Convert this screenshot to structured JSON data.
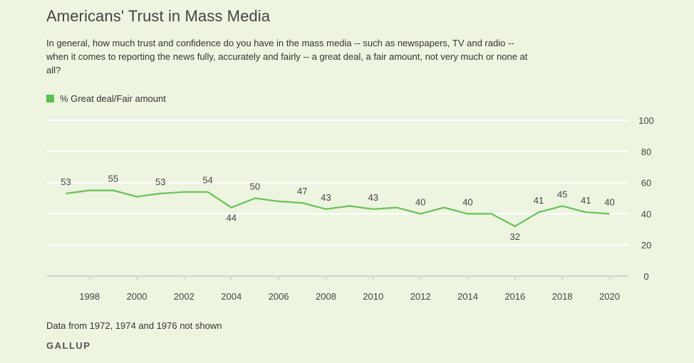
{
  "title": "Americans' Trust in Mass Media",
  "subtitle": "In general, how much trust and confidence do you have in the mass media -- such as newspapers, TV and radio -- when it comes to reporting the news fully, accurately and fairly -- a great deal, a fair amount, not very much or none at all?",
  "footnote": "Data from 1972, 1974 and 1976 not shown",
  "brand": "GALLUP",
  "colors": {
    "line": "#67c254",
    "background": "#edf4e0",
    "grid": "#ffffff",
    "swatch": "#5dc14f"
  },
  "chart_data": {
    "type": "line",
    "title": "Americans' Trust in Mass Media",
    "xlabel": "",
    "ylabel": "",
    "ylim": [
      0,
      100
    ],
    "yticks": [
      0,
      20,
      40,
      60,
      80,
      100
    ],
    "xticks": [
      1998,
      2000,
      2002,
      2004,
      2006,
      2008,
      2010,
      2012,
      2014,
      2016,
      2018,
      2020
    ],
    "xlim": [
      1996.2,
      2020.8
    ],
    "grid": true,
    "legend_position": "top-left",
    "series": [
      {
        "name": "% Great deal/Fair amount",
        "x": [
          1997,
          1998,
          1999,
          2000,
          2001,
          2002,
          2003,
          2004,
          2005,
          2006,
          2007,
          2008,
          2009,
          2010,
          2011,
          2012,
          2013,
          2014,
          2015,
          2016,
          2017,
          2018,
          2019,
          2020
        ],
        "values": [
          53,
          55,
          55,
          51,
          53,
          54,
          54,
          44,
          50,
          48,
          47,
          43,
          45,
          43,
          44,
          40,
          44,
          40,
          40,
          32,
          41,
          45,
          41,
          40
        ],
        "labeled": [
          true,
          false,
          true,
          false,
          true,
          false,
          true,
          true,
          true,
          false,
          true,
          true,
          false,
          true,
          false,
          true,
          false,
          true,
          false,
          true,
          true,
          true,
          true,
          true
        ]
      }
    ]
  }
}
